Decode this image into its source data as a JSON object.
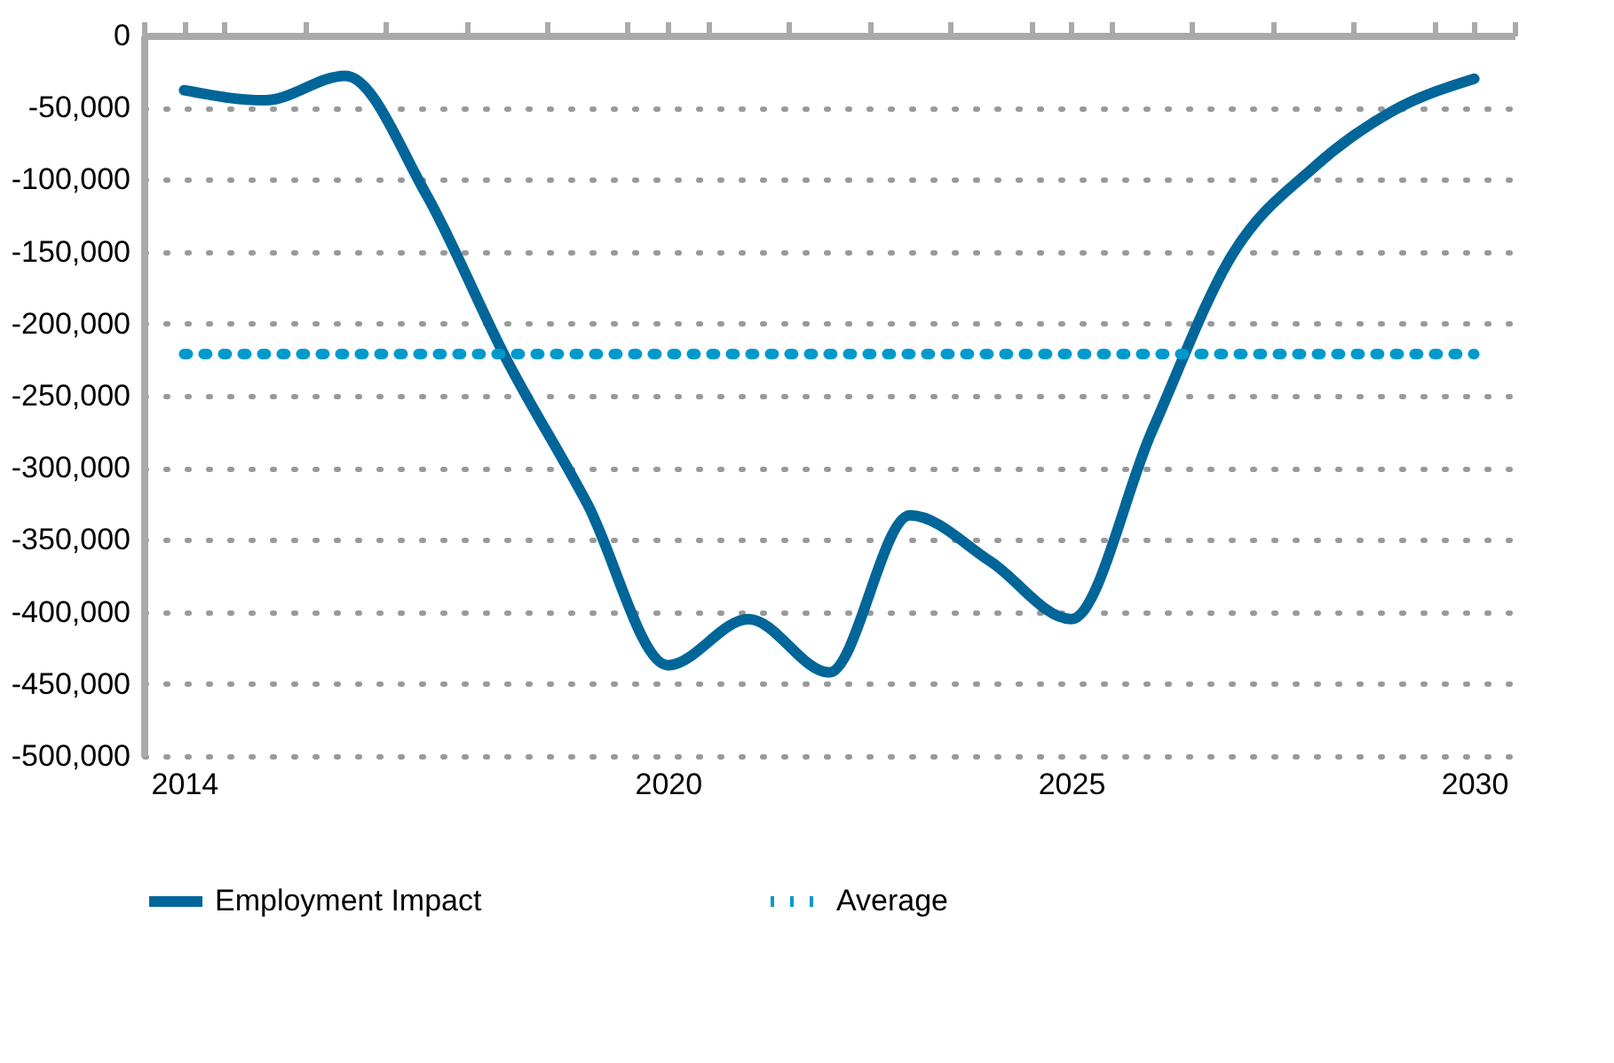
{
  "chart_data": {
    "type": "line",
    "x": [
      2014,
      2015,
      2016,
      2017,
      2018,
      2019,
      2020,
      2021,
      2022,
      2023,
      2024,
      2025,
      2026,
      2027,
      2028,
      2029,
      2030
    ],
    "series": [
      {
        "name": "Employment Impact",
        "color": "#006699",
        "line_style": "solid",
        "values": [
          -38000,
          -45000,
          -28000,
          -110000,
          -225000,
          -325000,
          -437000,
          -405000,
          -442000,
          -333000,
          -365000,
          -405000,
          -275000,
          -152000,
          -92000,
          -52000,
          -30000
        ]
      },
      {
        "name": "Average",
        "color": "#0099cc",
        "line_style": "dotted",
        "values": [
          -221000,
          -221000,
          -221000,
          -221000,
          -221000,
          -221000,
          -221000,
          -221000,
          -221000,
          -221000,
          -221000,
          -221000,
          -221000,
          -221000,
          -221000,
          -221000,
          -221000
        ]
      }
    ],
    "xlim": [
      2013.5,
      2030.5
    ],
    "xticks": [
      {
        "value": 2013.5,
        "label": null
      },
      2014,
      {
        "value": 2014.5,
        "label": null
      },
      {
        "value": 2015.5,
        "label": null
      },
      {
        "value": 2016.5,
        "label": null
      },
      {
        "value": 2017.5,
        "label": null
      },
      {
        "value": 2018.5,
        "label": null
      },
      {
        "value": 2019.5,
        "label": null
      },
      2020,
      {
        "value": 2020.5,
        "label": null
      },
      {
        "value": 2021.5,
        "label": null
      },
      {
        "value": 2022.5,
        "label": null
      },
      {
        "value": 2023.5,
        "label": null
      },
      {
        "value": 2024.5,
        "label": null
      },
      2025,
      {
        "value": 2025.5,
        "label": null
      },
      {
        "value": 2026.5,
        "label": null
      },
      {
        "value": 2027.5,
        "label": null
      },
      {
        "value": 2028.5,
        "label": null
      },
      {
        "value": 2029.5,
        "label": null
      },
      2030,
      {
        "value": 2030.5,
        "label": null
      }
    ],
    "ylim": [
      -500000,
      0
    ],
    "yticks": [
      {
        "value": -500000,
        "label": "-500,000"
      },
      {
        "value": -450000,
        "label": "-450,000"
      },
      {
        "value": -400000,
        "label": "-400,000"
      },
      {
        "value": -350000,
        "label": "-350,000"
      },
      {
        "value": -300000,
        "label": "-300,000"
      },
      {
        "value": -250000,
        "label": "-250,000"
      },
      {
        "value": -200000,
        "label": "-200,000"
      },
      {
        "value": -150000,
        "label": "-150,000"
      },
      {
        "value": -100000,
        "label": "-100,000"
      },
      {
        "value": -50000,
        "label": "-50,000"
      },
      0
    ],
    "grid": "y",
    "legend": "bottom",
    "marker": "none"
  }
}
